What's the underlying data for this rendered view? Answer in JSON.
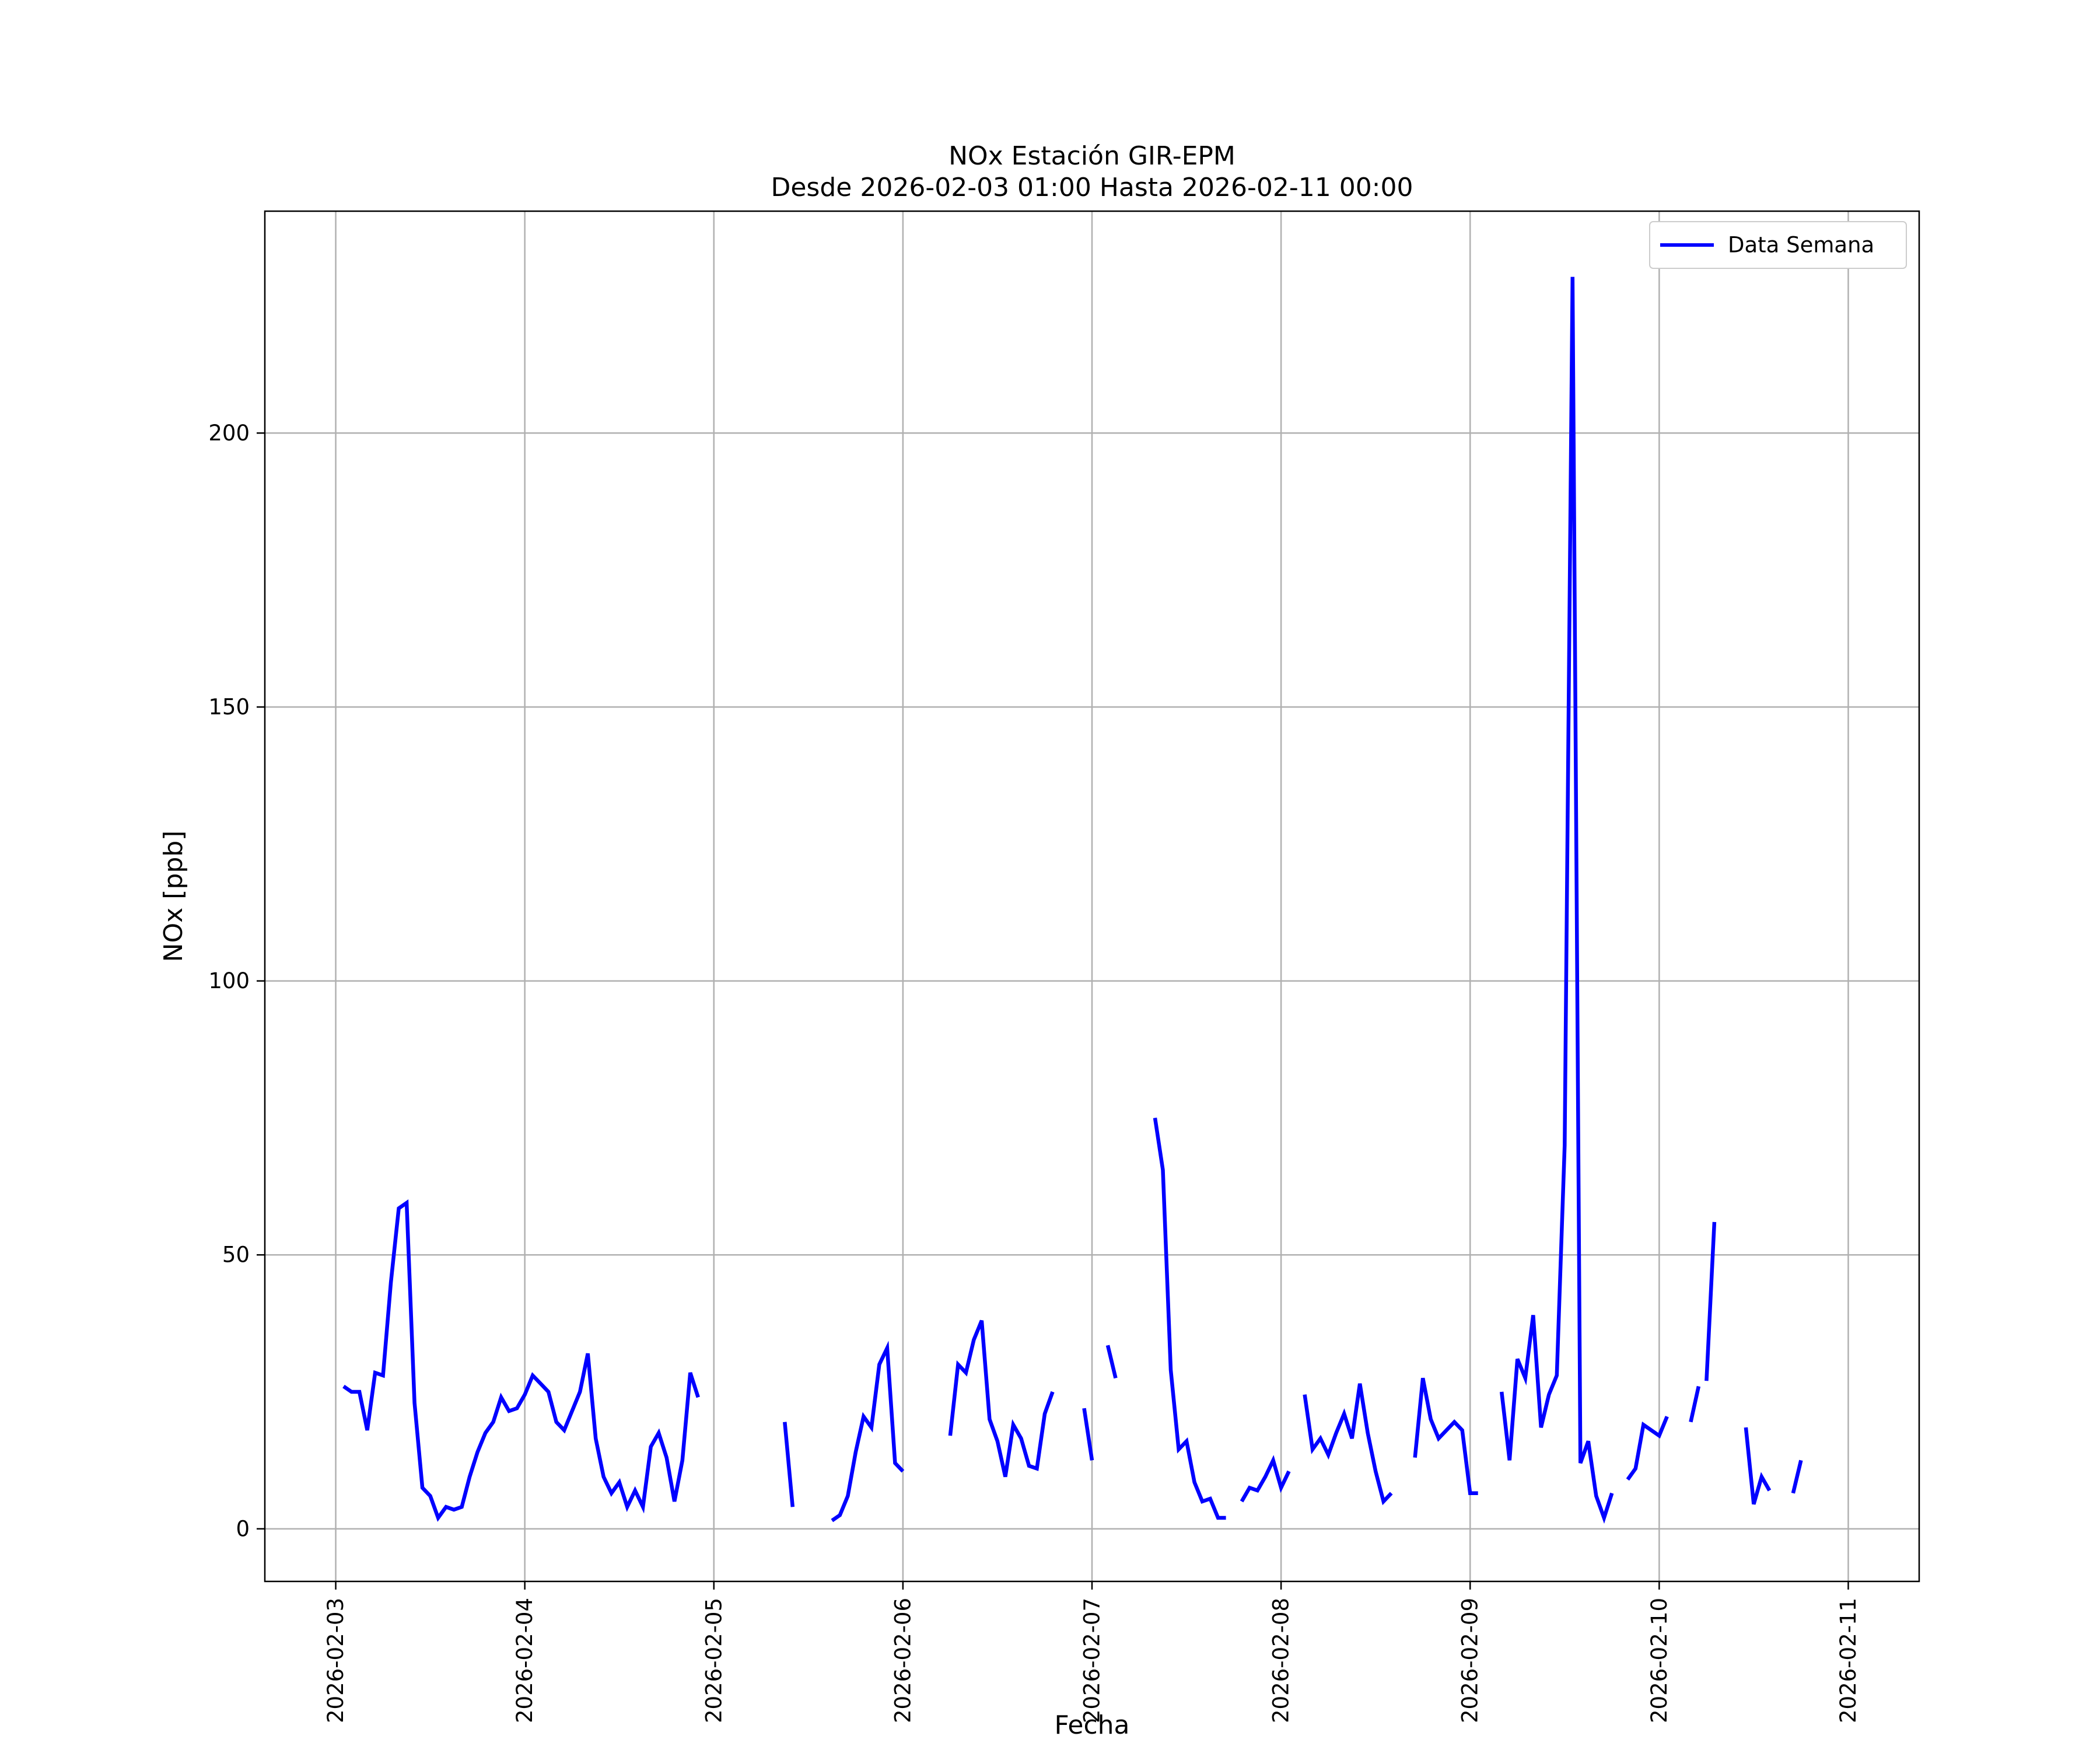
{
  "chart_data": {
    "type": "line",
    "title": "NOx Estación GIR-EPM",
    "subtitle": "Desde 2026-02-03 01:00 Hasta 2026-02-11 00:00",
    "xlabel": "Fecha",
    "ylabel": "NOx [ppb]",
    "ylim": [
      -9.6,
      240.5
    ],
    "xlim": [
      "2026-02-02 15:00",
      "2026-02-11 09:00"
    ],
    "x_ticks": [
      "2026-02-03",
      "2026-02-04",
      "2026-02-05",
      "2026-02-06",
      "2026-02-07",
      "2026-02-08",
      "2026-02-09",
      "2026-02-10",
      "2026-02-11"
    ],
    "y_ticks": [
      0,
      50,
      100,
      150,
      200
    ],
    "grid": true,
    "legend_position": "top-right",
    "line_color": "#0000ff",
    "series": [
      {
        "name": "Data Semana",
        "segments": [
          [
            [
              "2026-02-03 01:00",
              26
            ],
            [
              "2026-02-03 02:00",
              25
            ],
            [
              "2026-02-03 03:00",
              25
            ],
            [
              "2026-02-03 04:00",
              18
            ],
            [
              "2026-02-03 05:00",
              28.5
            ],
            [
              "2026-02-03 06:00",
              28
            ],
            [
              "2026-02-03 07:00",
              45
            ],
            [
              "2026-02-03 08:00",
              58.5
            ],
            [
              "2026-02-03 09:00",
              59.5
            ],
            [
              "2026-02-03 10:00",
              23
            ],
            [
              "2026-02-03 11:00",
              7.5
            ],
            [
              "2026-02-03 12:00",
              6
            ],
            [
              "2026-02-03 13:00",
              2
            ],
            [
              "2026-02-03 14:00",
              4
            ],
            [
              "2026-02-03 15:00",
              3.5
            ],
            [
              "2026-02-03 16:00",
              4
            ],
            [
              "2026-02-03 17:00",
              9.5
            ],
            [
              "2026-02-03 18:00",
              14
            ],
            [
              "2026-02-03 19:00",
              17.5
            ],
            [
              "2026-02-03 20:00",
              19.5
            ],
            [
              "2026-02-03 21:00",
              24
            ],
            [
              "2026-02-03 22:00",
              21.5
            ],
            [
              "2026-02-03 23:00",
              22
            ],
            [
              "2026-02-04 00:00",
              24.5
            ],
            [
              "2026-02-04 01:00",
              28
            ],
            [
              "2026-02-04 02:00",
              26.5
            ],
            [
              "2026-02-04 03:00",
              25
            ],
            [
              "2026-02-04 04:00",
              19.5
            ],
            [
              "2026-02-04 05:00",
              18
            ],
            [
              "2026-02-04 06:00",
              21.5
            ],
            [
              "2026-02-04 07:00",
              25
            ],
            [
              "2026-02-04 08:00",
              32
            ],
            [
              "2026-02-04 09:00",
              16.5
            ],
            [
              "2026-02-04 10:00",
              9.5
            ],
            [
              "2026-02-04 11:00",
              6.5
            ],
            [
              "2026-02-04 12:00",
              8.5
            ],
            [
              "2026-02-04 13:00",
              4
            ],
            [
              "2026-02-04 14:00",
              7
            ],
            [
              "2026-02-04 15:00",
              4
            ],
            [
              "2026-02-04 16:00",
              15
            ],
            [
              "2026-02-04 17:00",
              17.5
            ],
            [
              "2026-02-04 18:00",
              13
            ],
            [
              "2026-02-04 19:00",
              5
            ],
            [
              "2026-02-04 20:00",
              12.5
            ],
            [
              "2026-02-04 21:00",
              28.5
            ],
            [
              "2026-02-04 22:00",
              24
            ]
          ],
          [
            [
              "2026-02-05 09:00",
              19.5
            ],
            [
              "2026-02-05 10:00",
              4
            ]
          ],
          [
            [
              "2026-02-05 15:00",
              1.5
            ],
            [
              "2026-02-05 16:00",
              2.5
            ],
            [
              "2026-02-05 17:00",
              6
            ],
            [
              "2026-02-05 18:00",
              14
            ],
            [
              "2026-02-05 19:00",
              20.5
            ],
            [
              "2026-02-05 20:00",
              18.5
            ],
            [
              "2026-02-05 21:00",
              30
            ],
            [
              "2026-02-05 22:00",
              33
            ],
            [
              "2026-02-05 23:00",
              12
            ],
            [
              "2026-02-06 00:00",
              10.5
            ]
          ],
          [
            [
              "2026-02-06 06:00",
              17
            ],
            [
              "2026-02-06 07:00",
              30
            ],
            [
              "2026-02-06 08:00",
              28.5
            ],
            [
              "2026-02-06 09:00",
              34.5
            ],
            [
              "2026-02-06 10:00",
              38
            ],
            [
              "2026-02-06 11:00",
              20
            ],
            [
              "2026-02-06 12:00",
              16
            ],
            [
              "2026-02-06 13:00",
              9.5
            ],
            [
              "2026-02-06 14:00",
              19
            ],
            [
              "2026-02-06 15:00",
              16.5
            ],
            [
              "2026-02-06 16:00",
              11.5
            ],
            [
              "2026-02-06 17:00",
              11
            ],
            [
              "2026-02-06 18:00",
              21
            ],
            [
              "2026-02-06 19:00",
              25
            ]
          ],
          [
            [
              "2026-02-06 23:00",
              22
            ],
            [
              "2026-02-07 00:00",
              12.5
            ]
          ],
          [
            [
              "2026-02-07 02:00",
              33.5
            ],
            [
              "2026-02-07 03:00",
              27.5
            ]
          ],
          [
            [
              "2026-02-07 08:00",
              75
            ],
            [
              "2026-02-07 09:00",
              65.5
            ],
            [
              "2026-02-07 10:00",
              29
            ],
            [
              "2026-02-07 11:00",
              14.5
            ],
            [
              "2026-02-07 12:00",
              16
            ],
            [
              "2026-02-07 13:00",
              8.5
            ],
            [
              "2026-02-07 14:00",
              5
            ],
            [
              "2026-02-07 15:00",
              5.5
            ],
            [
              "2026-02-07 16:00",
              2
            ],
            [
              "2026-02-07 17:00",
              2
            ]
          ],
          [
            [
              "2026-02-07 19:00",
              5
            ],
            [
              "2026-02-07 20:00",
              7.5
            ],
            [
              "2026-02-07 21:00",
              7
            ],
            [
              "2026-02-07 22:00",
              9.5
            ],
            [
              "2026-02-07 23:00",
              12.5
            ],
            [
              "2026-02-08 00:00",
              7.5
            ],
            [
              "2026-02-08 01:00",
              10.5
            ]
          ],
          [
            [
              "2026-02-08 03:00",
              24.5
            ],
            [
              "2026-02-08 04:00",
              14.5
            ],
            [
              "2026-02-08 05:00",
              16.5
            ],
            [
              "2026-02-08 06:00",
              13.5
            ],
            [
              "2026-02-08 07:00",
              17.5
            ],
            [
              "2026-02-08 08:00",
              21
            ],
            [
              "2026-02-08 09:00",
              16.5
            ],
            [
              "2026-02-08 10:00",
              26.5
            ],
            [
              "2026-02-08 11:00",
              17.5
            ],
            [
              "2026-02-08 12:00",
              10.5
            ],
            [
              "2026-02-08 13:00",
              5
            ],
            [
              "2026-02-08 14:00",
              6.5
            ]
          ],
          [
            [
              "2026-02-08 17:00",
              13
            ],
            [
              "2026-02-08 18:00",
              27.5
            ],
            [
              "2026-02-08 19:00",
              20
            ],
            [
              "2026-02-08 20:00",
              16.5
            ],
            [
              "2026-02-08 21:00",
              18
            ],
            [
              "2026-02-08 22:00",
              19.5
            ],
            [
              "2026-02-08 23:00",
              18
            ],
            [
              "2026-02-09 00:00",
              6.5
            ],
            [
              "2026-02-09 01:00",
              6.5
            ]
          ],
          [
            [
              "2026-02-09 04:00",
              25
            ],
            [
              "2026-02-09 05:00",
              12.5
            ],
            [
              "2026-02-09 06:00",
              31
            ],
            [
              "2026-02-09 07:00",
              27.5
            ],
            [
              "2026-02-09 08:00",
              39
            ],
            [
              "2026-02-09 09:00",
              18.5
            ],
            [
              "2026-02-09 10:00",
              24.5
            ],
            [
              "2026-02-09 11:00",
              28
            ],
            [
              "2026-02-09 12:00",
              70
            ],
            [
              "2026-02-09 13:00",
              228.5
            ],
            [
              "2026-02-09 14:00",
              12
            ],
            [
              "2026-02-09 15:00",
              16
            ],
            [
              "2026-02-09 16:00",
              6
            ],
            [
              "2026-02-09 17:00",
              2
            ],
            [
              "2026-02-09 18:00",
              6.5
            ]
          ],
          [
            [
              "2026-02-09 20:00",
              9
            ],
            [
              "2026-02-09 21:00",
              11
            ],
            [
              "2026-02-09 22:00",
              19
            ],
            [
              "2026-02-09 23:00",
              18
            ],
            [
              "2026-02-10 00:00",
              17
            ],
            [
              "2026-02-10 01:00",
              20.5
            ]
          ],
          [
            [
              "2026-02-10 04:00",
              19.5
            ],
            [
              "2026-02-10 05:00",
              26
            ]
          ],
          [
            [
              "2026-02-10 06:00",
              27
            ],
            [
              "2026-02-10 07:00",
              56
            ]
          ],
          [
            [
              "2026-02-10 11:00",
              18.5
            ],
            [
              "2026-02-10 12:00",
              4.5
            ],
            [
              "2026-02-10 13:00",
              9.5
            ],
            [
              "2026-02-10 14:00",
              7
            ]
          ],
          [
            [
              "2026-02-10 17:00",
              6.5
            ],
            [
              "2026-02-10 18:00",
              12.5
            ]
          ]
        ]
      }
    ]
  }
}
